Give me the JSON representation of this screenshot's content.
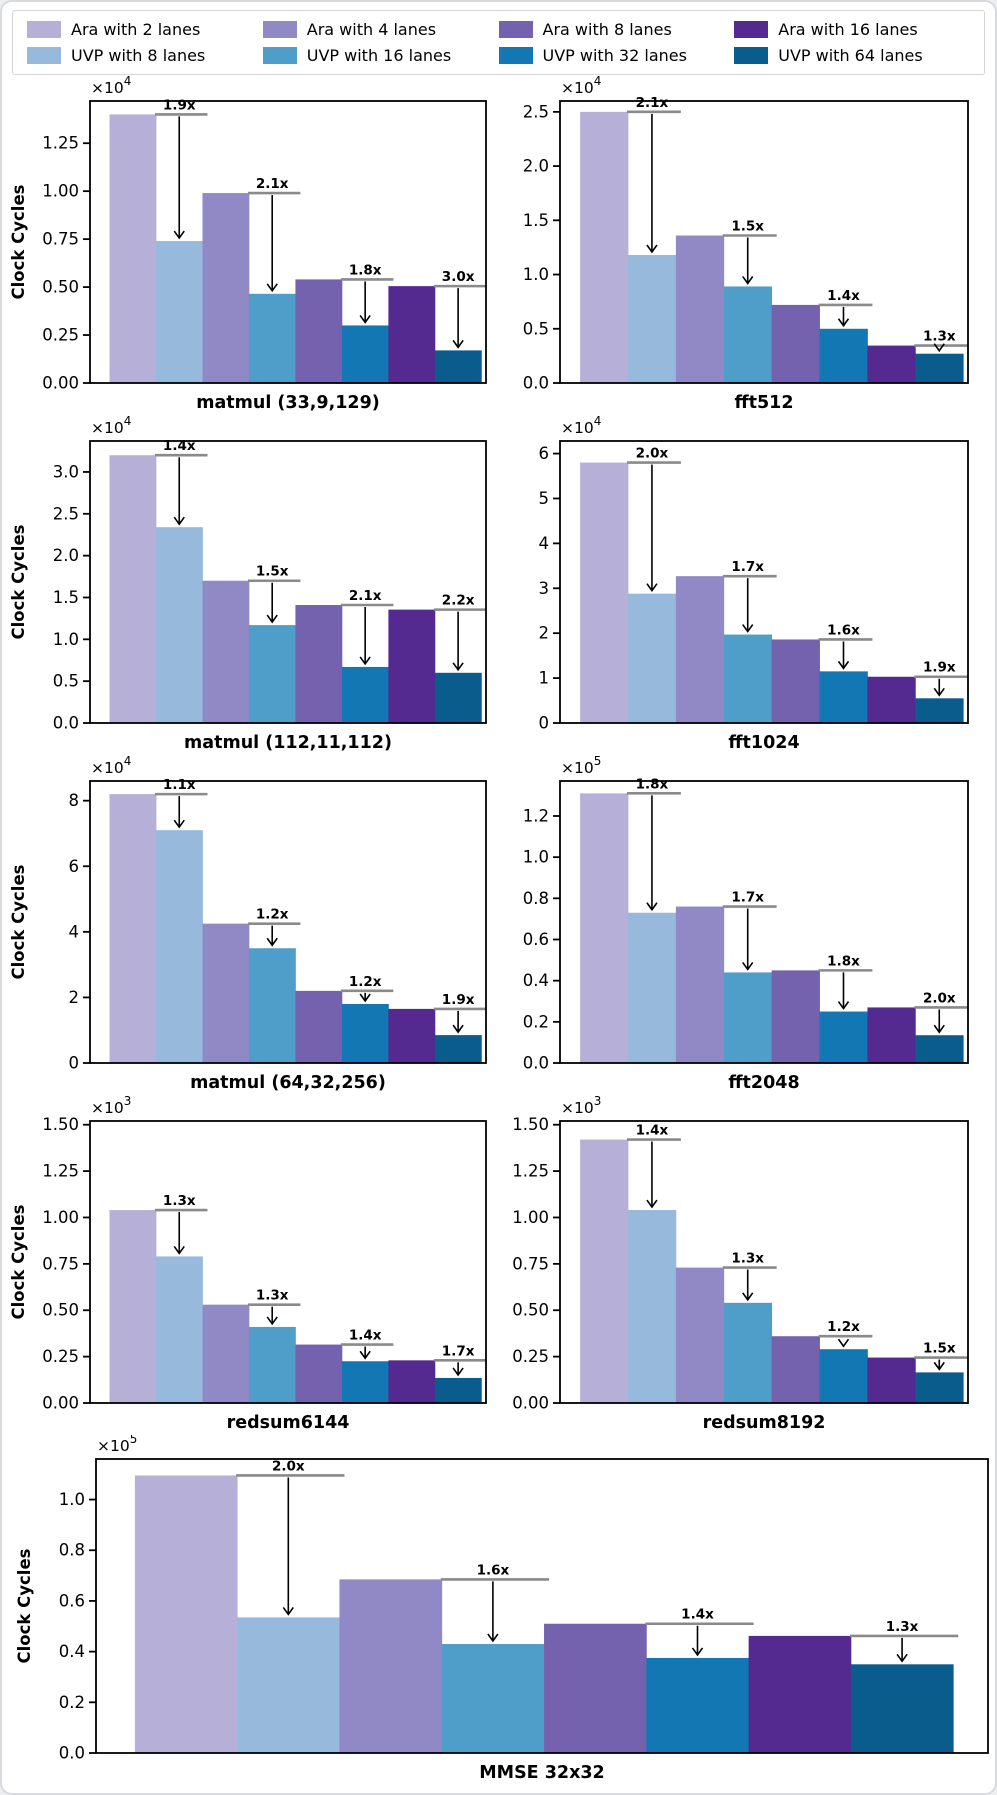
{
  "legend": {
    "items": [
      {
        "label": "Ara with 2 lanes",
        "color": "#b6b0d8"
      },
      {
        "label": "UVP with 8 lanes",
        "color": "#97b9dc"
      },
      {
        "label": "Ara with 4 lanes",
        "color": "#9189c6"
      },
      {
        "label": "UVP with 16 lanes",
        "color": "#4f9dc9"
      },
      {
        "label": "Ara with 8 lanes",
        "color": "#7462af"
      },
      {
        "label": "UVP with 32 lanes",
        "color": "#1277b3"
      },
      {
        "label": "Ara with 16 lanes",
        "color": "#552a90"
      },
      {
        "label": "UVP with 64 lanes",
        "color": "#0a5c8d"
      }
    ]
  },
  "bar_categories": [
    "Ara with 2 lanes",
    "UVP with 8 lanes",
    "Ara with 4 lanes",
    "UVP with 16 lanes",
    "Ara with 8 lanes",
    "UVP with 32 lanes",
    "Ara with 16 lanes",
    "UVP with 64 lanes"
  ],
  "bar_colors": [
    "#b6b0d8",
    "#97b9dc",
    "#9189c6",
    "#4f9dc9",
    "#7462af",
    "#1277b3",
    "#552a90",
    "#0a5c8d"
  ],
  "annotation_line_color": "#8a8a8a",
  "chart_data": [
    {
      "type": "bar",
      "title": "matmul (33,9,129)",
      "ylabel": "Clock Cycles",
      "scale": {
        "base": "×10",
        "exp": "4"
      },
      "ylim": [
        0,
        1.47
      ],
      "yticks": [
        0,
        0.25,
        0.5,
        0.75,
        1.0,
        1.25
      ],
      "tick_decimals": 2,
      "values": [
        1.4,
        0.74,
        0.99,
        0.465,
        0.54,
        0.3,
        0.505,
        0.17
      ],
      "speedups": [
        "1.9x",
        "2.1x",
        "1.8x",
        "3.0x"
      ]
    },
    {
      "type": "bar",
      "title": "fft512",
      "ylabel": "",
      "scale": {
        "base": "×10",
        "exp": "4"
      },
      "ylim": [
        0,
        2.6
      ],
      "yticks": [
        0,
        0.5,
        1.0,
        1.5,
        2.0,
        2.5
      ],
      "tick_decimals": 1,
      "values": [
        2.5,
        1.18,
        1.36,
        0.89,
        0.72,
        0.5,
        0.345,
        0.27
      ],
      "speedups": [
        "2.1x",
        "1.5x",
        "1.4x",
        "1.3x"
      ]
    },
    {
      "type": "bar",
      "title": "matmul (112,11,112)",
      "ylabel": "Clock Cycles",
      "scale": {
        "base": "×10",
        "exp": "4"
      },
      "ylim": [
        0,
        3.37
      ],
      "yticks": [
        0,
        0.5,
        1.0,
        1.5,
        2.0,
        2.5,
        3.0
      ],
      "tick_decimals": 1,
      "values": [
        3.2,
        2.34,
        1.7,
        1.17,
        1.41,
        0.67,
        1.355,
        0.6
      ],
      "speedups": [
        "1.4x",
        "1.5x",
        "2.1x",
        "2.2x"
      ]
    },
    {
      "type": "bar",
      "title": "fft1024",
      "ylabel": "",
      "scale": {
        "base": "×10",
        "exp": "4"
      },
      "ylim": [
        0,
        6.28
      ],
      "yticks": [
        0,
        1,
        2,
        3,
        4,
        5,
        6
      ],
      "tick_decimals": 0,
      "values": [
        5.8,
        2.88,
        3.27,
        1.97,
        1.86,
        1.15,
        1.03,
        0.55
      ],
      "speedups": [
        "2.0x",
        "1.7x",
        "1.6x",
        "1.9x"
      ]
    },
    {
      "type": "bar",
      "title": "matmul (64,32,256)",
      "ylabel": "Clock Cycles",
      "scale": {
        "base": "×10",
        "exp": "4"
      },
      "ylim": [
        0,
        8.6
      ],
      "yticks": [
        0,
        2,
        4,
        6,
        8
      ],
      "tick_decimals": 0,
      "values": [
        8.2,
        7.1,
        4.25,
        3.5,
        2.2,
        1.8,
        1.65,
        0.85
      ],
      "speedups": [
        "1.1x",
        "1.2x",
        "1.2x",
        "1.9x"
      ]
    },
    {
      "type": "bar",
      "title": "fft2048",
      "ylabel": "",
      "scale": {
        "base": "×10",
        "exp": "5"
      },
      "ylim": [
        0,
        1.37
      ],
      "yticks": [
        0,
        0.2,
        0.4,
        0.6,
        0.8,
        1.0,
        1.2
      ],
      "tick_decimals": 1,
      "values": [
        1.31,
        0.73,
        0.76,
        0.44,
        0.45,
        0.25,
        0.27,
        0.135
      ],
      "speedups": [
        "1.8x",
        "1.7x",
        "1.8x",
        "2.0x"
      ]
    },
    {
      "type": "bar",
      "title": "redsum6144",
      "ylabel": "Clock Cycles",
      "scale": {
        "base": "×10",
        "exp": "3"
      },
      "ylim": [
        0,
        1.52
      ],
      "yticks": [
        0,
        0.25,
        0.5,
        0.75,
        1.0,
        1.25,
        1.5
      ],
      "tick_decimals": 2,
      "values": [
        1.04,
        0.79,
        0.53,
        0.41,
        0.315,
        0.225,
        0.23,
        0.135
      ],
      "speedups": [
        "1.3x",
        "1.3x",
        "1.4x",
        "1.7x"
      ]
    },
    {
      "type": "bar",
      "title": "redsum8192",
      "ylabel": "",
      "scale": {
        "base": "×10",
        "exp": "3"
      },
      "ylim": [
        0,
        1.52
      ],
      "yticks": [
        0,
        0.25,
        0.5,
        0.75,
        1.0,
        1.25,
        1.5
      ],
      "tick_decimals": 2,
      "values": [
        1.42,
        1.04,
        0.73,
        0.54,
        0.36,
        0.29,
        0.245,
        0.165
      ],
      "speedups": [
        "1.4x",
        "1.3x",
        "1.2x",
        "1.5x"
      ]
    },
    {
      "type": "bar",
      "title": "MMSE 32x32",
      "ylabel": "Clock Cycles",
      "scale": {
        "base": "×10",
        "exp": "5"
      },
      "ylim": [
        0,
        1.16
      ],
      "yticks": [
        0,
        0.2,
        0.4,
        0.6,
        0.8,
        1.0
      ],
      "tick_decimals": 1,
      "values": [
        1.095,
        0.535,
        0.685,
        0.43,
        0.51,
        0.375,
        0.462,
        0.35
      ],
      "speedups": [
        "2.0x",
        "1.6x",
        "1.4x",
        "1.3x"
      ]
    }
  ]
}
